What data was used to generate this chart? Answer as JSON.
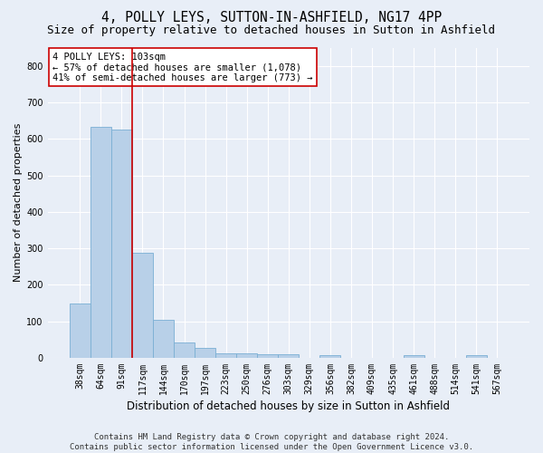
{
  "title": "4, POLLY LEYS, SUTTON-IN-ASHFIELD, NG17 4PP",
  "subtitle": "Size of property relative to detached houses in Sutton in Ashfield",
  "xlabel": "Distribution of detached houses by size in Sutton in Ashfield",
  "ylabel": "Number of detached properties",
  "annotation_line1": "4 POLLY LEYS: 103sqm",
  "annotation_line2": "← 57% of detached houses are smaller (1,078)",
  "annotation_line3": "41% of semi-detached houses are larger (773) →",
  "bar_labels": [
    "38sqm",
    "64sqm",
    "91sqm",
    "117sqm",
    "144sqm",
    "170sqm",
    "197sqm",
    "223sqm",
    "250sqm",
    "276sqm",
    "303sqm",
    "329sqm",
    "356sqm",
    "382sqm",
    "409sqm",
    "435sqm",
    "461sqm",
    "488sqm",
    "514sqm",
    "541sqm",
    "567sqm"
  ],
  "bar_values": [
    148,
    632,
    625,
    287,
    103,
    42,
    28,
    13,
    12,
    10,
    10,
    0,
    8,
    0,
    0,
    0,
    7,
    0,
    0,
    8,
    0
  ],
  "bar_color": "#b8d0e8",
  "bar_edgecolor": "#7aafd4",
  "vline_x_index": 2,
  "vline_color": "#cc0000",
  "background_color": "#e8eef7",
  "plot_bg_color": "#e8eef7",
  "annotation_box_facecolor": "#ffffff",
  "annotation_box_edgecolor": "#cc0000",
  "ylim": [
    0,
    850
  ],
  "yticks": [
    0,
    100,
    200,
    300,
    400,
    500,
    600,
    700,
    800
  ],
  "footer_line1": "Contains HM Land Registry data © Crown copyright and database right 2024.",
  "footer_line2": "Contains public sector information licensed under the Open Government Licence v3.0.",
  "grid_color": "#ffffff",
  "title_fontsize": 10.5,
  "subtitle_fontsize": 9,
  "xlabel_fontsize": 8.5,
  "ylabel_fontsize": 8,
  "tick_fontsize": 7,
  "annotation_fontsize": 7.5,
  "footer_fontsize": 6.5
}
